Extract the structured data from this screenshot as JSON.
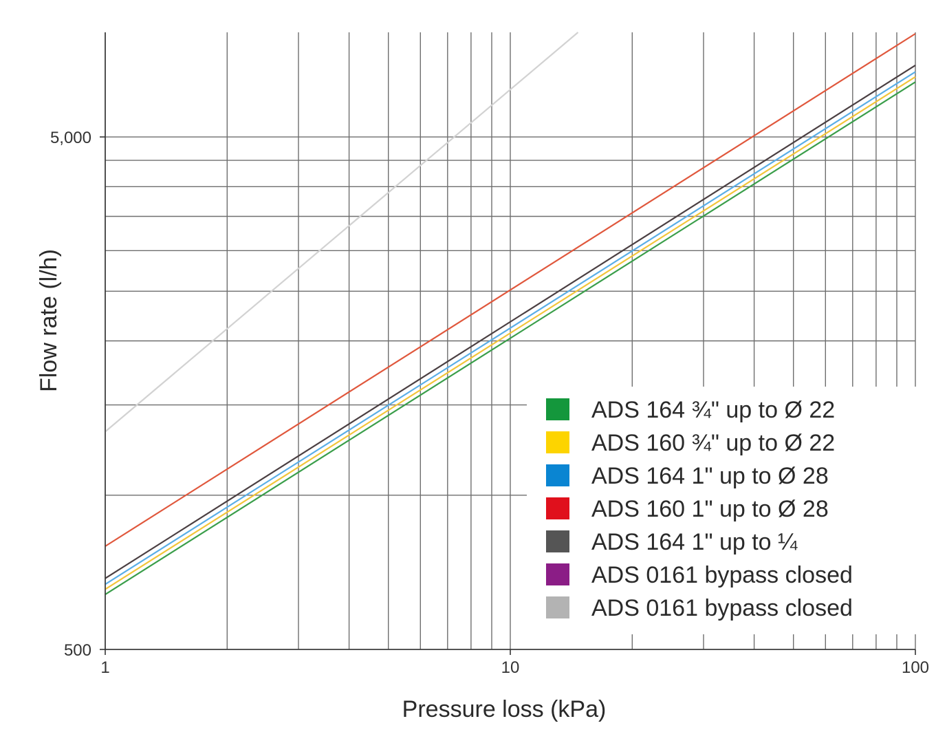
{
  "chart_data": {
    "type": "line",
    "title": "",
    "xlabel": "Pressure loss (kPa)",
    "ylabel": "Flow rate (l/h)",
    "x_scale": "log",
    "y_scale": "log",
    "xlim": [
      1,
      100
    ],
    "ylim": [
      500,
      8000
    ],
    "x_tick_labels": [
      {
        "value": 1,
        "label": "1"
      },
      {
        "value": 10,
        "label": "10"
      },
      {
        "value": 100,
        "label": "100"
      }
    ],
    "y_tick_labels": [
      {
        "value": 500,
        "label": "500"
      },
      {
        "value": 5000,
        "label": "5,000"
      }
    ],
    "x_gridlines": [
      1,
      2,
      3,
      4,
      5,
      6,
      7,
      8,
      9,
      10,
      20,
      30,
      40,
      50,
      60,
      70,
      80,
      90,
      100
    ],
    "y_gridlines": [
      500,
      1000,
      1500,
      2000,
      2500,
      3000,
      3500,
      4000,
      4500,
      5000
    ],
    "grid": true,
    "legend_position": "bottom-right",
    "series": [
      {
        "name": "ADS 164 ¾\" up to Ø 22",
        "color": "#3a9e4a",
        "x": [
          1,
          100
        ],
        "y": [
          640,
          6400
        ]
      },
      {
        "name": "ADS 160 ¾\" up to Ø 22",
        "color": "#f2c53a",
        "x": [
          1,
          100
        ],
        "y": [
          655,
          6550
        ]
      },
      {
        "name": "ADS 164 1\" up to Ø 28",
        "color": "#5aaee6",
        "x": [
          1,
          100
        ],
        "y": [
          670,
          6700
        ]
      },
      {
        "name": "ADS 160 1\" up to Ø 28",
        "color": "#e0573c",
        "x": [
          1,
          100
        ],
        "y": [
          795,
          7950
        ]
      },
      {
        "name": "ADS 164 1\" up to ¼",
        "color": "#4a3f42",
        "x": [
          1,
          100
        ],
        "y": [
          688,
          6900
        ]
      },
      {
        "name": "ADS 0161 bypass closed",
        "color": "#7b2a7d",
        "x": [],
        "y": []
      },
      {
        "name": "ADS 0161 bypass closed",
        "color": "#d2d2d2",
        "x": [
          1,
          14.7
        ],
        "y": [
          1330,
          8000
        ]
      }
    ],
    "legend_swatch_colors": [
      "#14973c",
      "#fdd400",
      "#0a85d2",
      "#e0101c",
      "#555555",
      "#8b1d86",
      "#b3b3b3"
    ]
  }
}
